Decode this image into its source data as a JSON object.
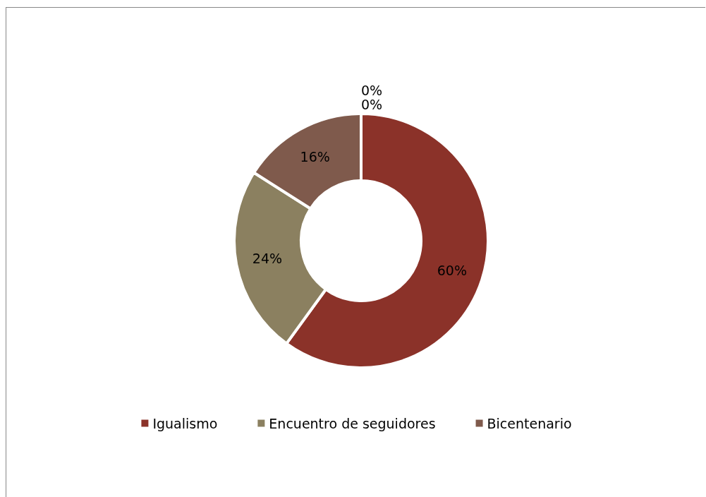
{
  "chart_data": {
    "type": "donut",
    "categories": [
      "Igualismo",
      "Encuentro de seguidores",
      "Bicentenario",
      null,
      null
    ],
    "values": [
      60,
      24,
      16,
      0,
      0
    ],
    "value_labels": [
      "60%",
      "24%",
      "16%",
      "0%",
      "0%"
    ],
    "colors": [
      "#8b3229",
      "#8b8060",
      "#7f5a4c",
      "#8e7a70",
      "#9a8a80"
    ],
    "legend": "bottom"
  }
}
